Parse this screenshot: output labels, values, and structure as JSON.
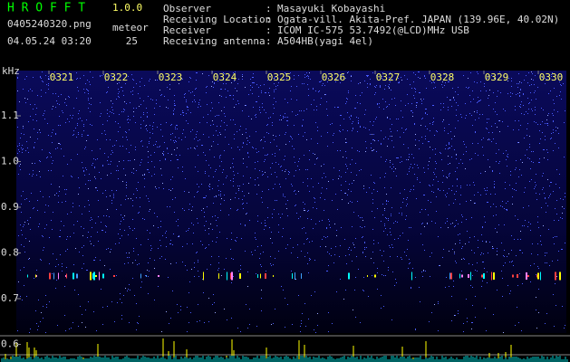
{
  "header": {
    "app": "H R O F F T",
    "version": "1.0.0",
    "file": "0405240320.png",
    "datetime": "04.05.24 03:20",
    "meteor_label": "meteor",
    "meteor_count": "25"
  },
  "info": [
    {
      "label": "Observer",
      "sep": ":",
      "value": "Masayuki Kobayashi"
    },
    {
      "label": "Receiving Location",
      "sep": ":",
      "value": "Ogata-vill. Akita-Pref. JAPAN (139.96E, 40.02N)"
    },
    {
      "label": "Receiver",
      "sep": ":",
      "value": "ICOM IC-575 53.7492(@LCD)MHz USB"
    },
    {
      "label": "Receiving antenna",
      "sep": ":",
      "value": "A504HB(yagi 4el)"
    }
  ],
  "spectrogram": {
    "unit": "kHz",
    "time_labels": [
      "0321",
      "0322",
      "0323",
      "0324",
      "0325",
      "0326",
      "0327",
      "0328",
      "0329",
      "0330"
    ],
    "freq_labels": [
      "1.1",
      "1.0",
      "0.9",
      "0.8",
      "0.7",
      "0.6"
    ]
  }
}
